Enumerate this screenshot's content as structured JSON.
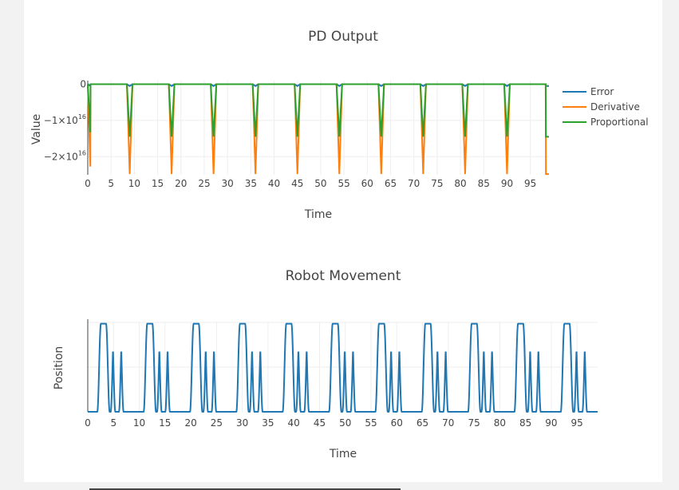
{
  "chart_data": [
    {
      "type": "line",
      "title": "PD Output",
      "xlabel": "Time",
      "ylabel": "Value",
      "xlim": [
        0,
        99
      ],
      "ylim": [
        -2.5e+16,
        1000000000000000.0
      ],
      "x_ticks": [
        0,
        5,
        10,
        15,
        20,
        25,
        30,
        35,
        40,
        45,
        50,
        55,
        60,
        65,
        70,
        75,
        80,
        85,
        90,
        95
      ],
      "y_ticks": [
        {
          "value": 0,
          "label": "0",
          "sup": ""
        },
        {
          "value": -1e+16,
          "label": "−1×10",
          "sup": "16"
        },
        {
          "value": -2e+16,
          "label": "−2×10",
          "sup": "16"
        }
      ],
      "legend_position": "right",
      "grid": true,
      "pulse_period": 9,
      "series": [
        {
          "name": "Error",
          "color": "#1f77b4",
          "dip_min": -500000000000000.0
        },
        {
          "name": "Derivative",
          "color": "#ff7f0e",
          "dip_min": -2.48e+16
        },
        {
          "name": "Proportional",
          "color": "#2ca02c",
          "dip_min": -1.45e+16
        }
      ]
    },
    {
      "type": "line",
      "title": "Robot Movement",
      "xlabel": "Time",
      "ylabel": "Position",
      "xlim": [
        0,
        99
      ],
      "ylim": [
        0,
        1
      ],
      "x_ticks": [
        0,
        5,
        10,
        15,
        20,
        25,
        30,
        35,
        40,
        45,
        50,
        55,
        60,
        65,
        70,
        75,
        80,
        85,
        90,
        95
      ],
      "grid": true,
      "series": [
        {
          "name": "",
          "color": "#1f77b4",
          "pattern_period": 9
        }
      ]
    }
  ]
}
